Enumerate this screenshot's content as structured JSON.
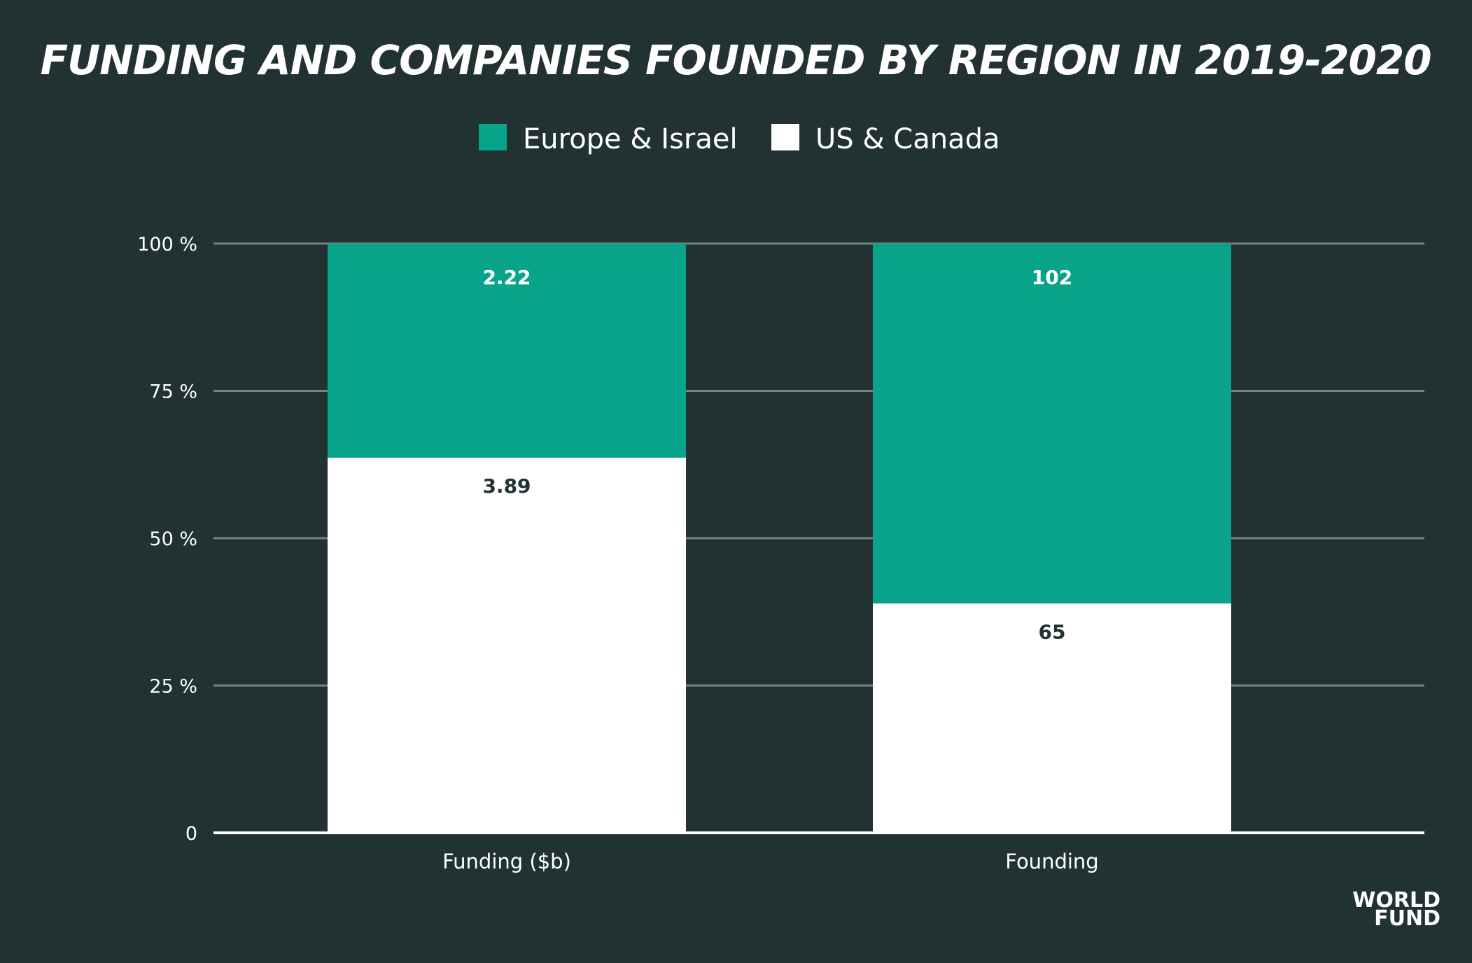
{
  "colors": {
    "background": "#223233",
    "europe_israel": "#07a38a",
    "us_canada": "#ffffff",
    "gridline": "#7a7f7f",
    "label_dark": "#223233",
    "label_light": "#ffffff"
  },
  "chart_data": {
    "type": "bar",
    "stacked": true,
    "normalized": true,
    "title": "FUNDING AND COMPANIES FOUNDED BY REGION IN 2019-2020",
    "xlabel": "",
    "ylabel": "",
    "ylim": [
      0,
      100
    ],
    "grid": true,
    "legend_position": "top-center",
    "categories": [
      "Funding ($b)",
      "Founding"
    ],
    "y_ticks": [
      0,
      25,
      50,
      75,
      100
    ],
    "y_tick_labels": [
      "0",
      "25 %",
      "50 %",
      "75 %",
      "100 %"
    ],
    "series": [
      {
        "name": "US & Canada",
        "color": "#ffffff",
        "values": [
          3.89,
          65
        ],
        "value_labels": [
          "3.89",
          "65"
        ]
      },
      {
        "name": "Europe & Israel",
        "color": "#07a38a",
        "values": [
          2.22,
          102
        ],
        "value_labels": [
          "2.22",
          "102"
        ]
      }
    ]
  },
  "legend": {
    "items": [
      {
        "label": "Europe & Israel",
        "color": "#07a38a"
      },
      {
        "label": "US & Canada",
        "color": "#ffffff"
      }
    ]
  },
  "logo": {
    "line1": "WORLD",
    "line2": "FUND"
  }
}
